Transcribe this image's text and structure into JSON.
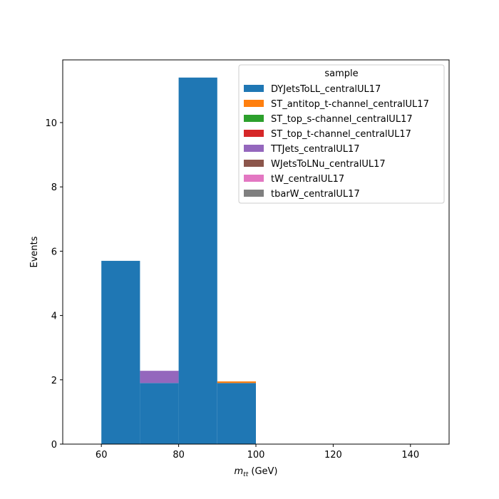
{
  "chart_data": {
    "type": "bar",
    "stacked": true,
    "bins": [
      [
        60,
        70
      ],
      [
        70,
        80
      ],
      [
        80,
        90
      ],
      [
        90,
        100
      ]
    ],
    "xlim": [
      50,
      150
    ],
    "ylim": [
      0,
      11.95
    ],
    "xticks": [
      60,
      80,
      100,
      120,
      140
    ],
    "yticks": [
      0,
      2,
      4,
      6,
      8,
      10
    ],
    "xlabel_main": "m",
    "xlabel_sub": "tt",
    "xlabel_unit": " (GeV)",
    "ylabel": "Events",
    "legend_title": "sample",
    "legend_position": "top-right",
    "grid": false,
    "series": [
      {
        "name": "DYJetsToLL_centralUL17",
        "color": "#1f77b4",
        "values": [
          5.7,
          1.9,
          11.4,
          1.9
        ]
      },
      {
        "name": "ST_antitop_t-channel_centralUL17",
        "color": "#ff7f0e",
        "values": [
          0,
          0,
          0,
          0.05
        ]
      },
      {
        "name": "ST_top_s-channel_centralUL17",
        "color": "#2ca02c",
        "values": [
          0,
          0,
          0,
          0
        ]
      },
      {
        "name": "ST_top_t-channel_centralUL17",
        "color": "#d62728",
        "values": [
          0,
          0,
          0,
          0
        ]
      },
      {
        "name": "TTJets_centralUL17",
        "color": "#9467bd",
        "values": [
          0,
          0.38,
          0,
          0
        ]
      },
      {
        "name": "WJetsToLNu_centralUL17",
        "color": "#8c564b",
        "values": [
          0,
          0,
          0,
          0
        ]
      },
      {
        "name": "tW_centralUL17",
        "color": "#e377c2",
        "values": [
          0,
          0,
          0,
          0
        ]
      },
      {
        "name": "tbarW_centralUL17",
        "color": "#7f7f7f",
        "values": [
          0,
          0,
          0,
          0
        ]
      }
    ]
  }
}
